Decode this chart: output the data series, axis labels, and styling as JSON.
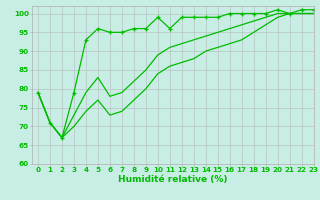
{
  "series": [
    {
      "x": [
        0,
        1,
        2,
        3,
        4,
        5,
        6,
        7,
        8,
        9,
        10,
        11,
        12,
        13,
        14,
        15,
        16,
        17,
        18,
        19,
        20,
        21,
        22,
        23
      ],
      "y": [
        79,
        71,
        67,
        79,
        93,
        96,
        95,
        95,
        96,
        96,
        99,
        96,
        99,
        99,
        99,
        99,
        100,
        100,
        100,
        100,
        101,
        100,
        101,
        101
      ],
      "marker": "+",
      "linestyle": "-"
    },
    {
      "x": [
        0,
        1,
        2,
        3,
        4,
        5,
        6,
        7,
        8,
        9,
        10,
        11,
        12,
        13,
        14,
        15,
        16,
        17,
        18,
        19,
        20,
        21,
        22,
        23
      ],
      "y": [
        79,
        71,
        67,
        73,
        79,
        83,
        78,
        79,
        82,
        85,
        89,
        91,
        92,
        93,
        94,
        95,
        96,
        97,
        98,
        99,
        100,
        100,
        100,
        100
      ],
      "marker": null,
      "linestyle": "-"
    },
    {
      "x": [
        0,
        1,
        2,
        3,
        4,
        5,
        6,
        7,
        8,
        9,
        10,
        11,
        12,
        13,
        14,
        15,
        16,
        17,
        18,
        19,
        20,
        21,
        22,
        23
      ],
      "y": [
        79,
        71,
        67,
        70,
        74,
        77,
        73,
        74,
        77,
        80,
        84,
        86,
        87,
        88,
        90,
        91,
        92,
        93,
        95,
        97,
        99,
        100,
        100,
        100
      ],
      "marker": null,
      "linestyle": "-"
    }
  ],
  "xlabel": "Humidité relative (%)",
  "xlim": [
    -0.5,
    23
  ],
  "ylim": [
    60,
    102
  ],
  "yticks": [
    60,
    65,
    70,
    75,
    80,
    85,
    90,
    95,
    100
  ],
  "xticks": [
    0,
    1,
    2,
    3,
    4,
    5,
    6,
    7,
    8,
    9,
    10,
    11,
    12,
    13,
    14,
    15,
    16,
    17,
    18,
    19,
    20,
    21,
    22,
    23
  ],
  "bg_color": "#c8ede4",
  "grid_color": "#b0b0b0",
  "line_color": "#00bb00",
  "xlabel_fontsize": 6.5,
  "tick_fontsize": 5.2,
  "linewidth": 0.9,
  "marker_size": 3.0
}
